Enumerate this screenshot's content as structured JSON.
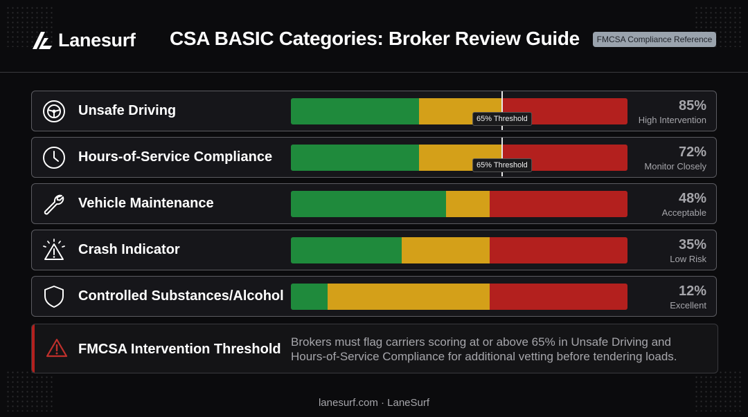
{
  "brand": {
    "name": "Lanesurf"
  },
  "header": {
    "title": "CSA BASIC Categories: Broker Review Guide",
    "badge": "FMCSA Compliance Reference"
  },
  "threshold": {
    "value": 65,
    "label": "65% Threshold"
  },
  "chart_data": {
    "type": "bar",
    "title": "CSA BASIC Categories: Broker Review Guide",
    "categories": [
      "Unsafe Driving",
      "Hours-of-Service Compliance",
      "Vehicle Maintenance",
      "Crash Indicator",
      "Controlled Substances/Alcohol"
    ],
    "values": [
      85,
      72,
      48,
      35,
      12
    ],
    "score_labels": [
      "85%",
      "72%",
      "48%",
      "35%",
      "12%"
    ],
    "statuses": [
      "High Intervention",
      "Monitor Closely",
      "Acceptable",
      "Low Risk",
      "Excellent"
    ],
    "icons": [
      "steering-wheel-icon",
      "clock-icon",
      "wrench-icon",
      "warning-triangle-icon",
      "shield-icon"
    ],
    "segments": [
      {
        "green": 0.38,
        "yellow": 0.25,
        "red": 0.37
      },
      {
        "green": 0.38,
        "yellow": 0.25,
        "red": 0.37
      },
      {
        "green": 0.46,
        "yellow": 0.13,
        "red": 0.41
      },
      {
        "green": 0.33,
        "yellow": 0.26,
        "red": 0.41
      },
      {
        "green": 0.11,
        "yellow": 0.48,
        "red": 0.41
      }
    ],
    "threshold_rows": [
      0,
      1
    ],
    "colors": {
      "green": "#1f8a3c",
      "yellow": "#d4a019",
      "red": "#b3201e"
    }
  },
  "note": {
    "title": "FMCSA Intervention Threshold",
    "text": "Brokers must flag carriers scoring at or above 65% in Unsafe Driving and Hours-of-Service Compliance for additional vetting before tendering loads."
  },
  "footer": {
    "text": "lanesurf.com · LaneSurf"
  }
}
